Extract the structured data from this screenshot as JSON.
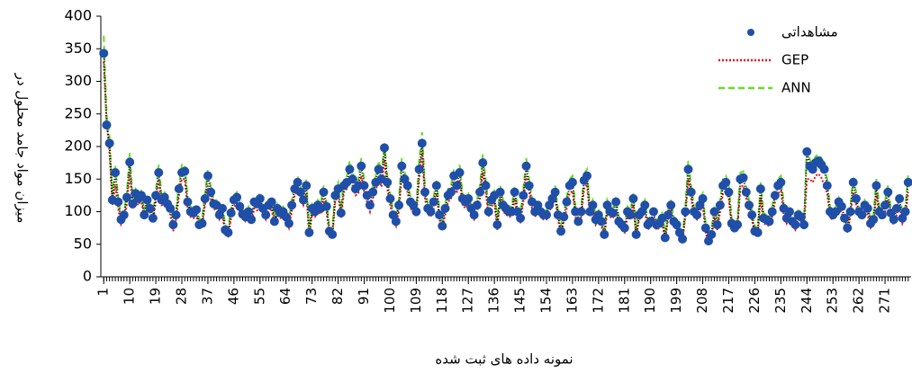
{
  "chart_data": {
    "type": "line",
    "y_label": "میزان مواد جامد محلول در",
    "x_label": "نمونه داده های ثبت شده",
    "xlim": [
      0,
      280
    ],
    "ylim": [
      0,
      400
    ],
    "yticks": [
      0,
      50,
      100,
      150,
      200,
      250,
      300,
      350,
      400
    ],
    "xticks": [
      1,
      10,
      19,
      28,
      37,
      46,
      55,
      64,
      73,
      82,
      91,
      100,
      109,
      118,
      127,
      136,
      145,
      154,
      163,
      172,
      181,
      190,
      199,
      208,
      217,
      226,
      235,
      244,
      253,
      262,
      271
    ],
    "legend": "upper right",
    "x": [
      1,
      2,
      3,
      4,
      5,
      6,
      7,
      8,
      9,
      10,
      11,
      12,
      13,
      14,
      15,
      16,
      17,
      18,
      19,
      20,
      21,
      22,
      23,
      24,
      25,
      26,
      27,
      28,
      29,
      30,
      31,
      32,
      33,
      34,
      35,
      36,
      37,
      38,
      39,
      40,
      41,
      42,
      43,
      44,
      45,
      46,
      47,
      48,
      49,
      50,
      51,
      52,
      53,
      54,
      55,
      56,
      57,
      58,
      59,
      60,
      61,
      62,
      63,
      64,
      65,
      66,
      67,
      68,
      69,
      70,
      71,
      72,
      73,
      74,
      75,
      76,
      77,
      78,
      79,
      80,
      81,
      82,
      83,
      84,
      85,
      86,
      87,
      88,
      89,
      90,
      91,
      92,
      93,
      94,
      95,
      96,
      97,
      98,
      99,
      100,
      101,
      102,
      103,
      104,
      105,
      106,
      107,
      108,
      109,
      110,
      111,
      112,
      113,
      114,
      115,
      116,
      117,
      118,
      119,
      120,
      121,
      122,
      123,
      124,
      125,
      126,
      127,
      128,
      129,
      130,
      131,
      132,
      133,
      134,
      135,
      136,
      137,
      138,
      139,
      140,
      141,
      142,
      143,
      144,
      145,
      146,
      147,
      148,
      149,
      150,
      151,
      152,
      153,
      154,
      155,
      156,
      157,
      158,
      159,
      160,
      161,
      162,
      163,
      164,
      165,
      166,
      167,
      168,
      169,
      170,
      171,
      172,
      173,
      174,
      175,
      176,
      177,
      178,
      179,
      180,
      181,
      182,
      183,
      184,
      185,
      186,
      187,
      188,
      189,
      190,
      191,
      192,
      193,
      194,
      195,
      196,
      197,
      198,
      199,
      200,
      201,
      202,
      203,
      204,
      205,
      206,
      207,
      208,
      209,
      210,
      211,
      212,
      213,
      214,
      215,
      216,
      217,
      218,
      219,
      220,
      221,
      222,
      223,
      224,
      225,
      226,
      227,
      228,
      229,
      230,
      231,
      232,
      233,
      234,
      235,
      236,
      237,
      238,
      239,
      240,
      241,
      242,
      243,
      244,
      245,
      246,
      247,
      248,
      249,
      250,
      251,
      252,
      253,
      254,
      255,
      256,
      257,
      258,
      259,
      260,
      261,
      262,
      263,
      264,
      265,
      266,
      267,
      268,
      269,
      270,
      271,
      272,
      273,
      274,
      275,
      276,
      277,
      278,
      279
    ],
    "series": [
      {
        "name": "مشاهداتی",
        "color": "#1f4fa8",
        "marker": "circle",
        "line_color": "#000000",
        "dash": "1,2",
        "values": [
          343,
          233,
          205,
          118,
          160,
          115,
          88,
          95,
          122,
          176,
          112,
          128,
          120,
          125,
          95,
          118,
          105,
          90,
          125,
          160,
          118,
          122,
          112,
          105,
          80,
          95,
          135,
          160,
          162,
          115,
          100,
          98,
          103,
          80,
          82,
          120,
          155,
          130,
          112,
          110,
          95,
          105,
          72,
          68,
          98,
          118,
          122,
          108,
          96,
          92,
          100,
          88,
          115,
          112,
          120,
          105,
          95,
          110,
          115,
          85,
          105,
          98,
          100,
          92,
          82,
          110,
          135,
          145,
          130,
          118,
          140,
          68,
          105,
          100,
          110,
          105,
          130,
          108,
          70,
          65,
          125,
          135,
          98,
          140,
          145,
          165,
          150,
          135,
          140,
          170,
          140,
          125,
          110,
          130,
          145,
          165,
          150,
          198,
          145,
          120,
          95,
          85,
          110,
          170,
          150,
          140,
          115,
          110,
          100,
          165,
          205,
          130,
          105,
          100,
          115,
          140,
          95,
          78,
          105,
          125,
          130,
          155,
          140,
          160,
          120,
          115,
          120,
          105,
          95,
          110,
          130,
          175,
          140,
          100,
          118,
          125,
          80,
          130,
          110,
          105,
          100,
          100,
          130,
          100,
          90,
          125,
          170,
          140,
          115,
          100,
          110,
          100,
          95,
          95,
          110,
          120,
          130,
          95,
          70,
          92,
          115,
          140,
          145,
          100,
          85,
          100,
          148,
          155,
          100,
          110,
          88,
          95,
          85,
          65,
          110,
          100,
          98,
          115,
          85,
          80,
          75,
          100,
          95,
          120,
          65,
          95,
          100,
          110,
          80,
          85,
          100,
          80,
          82,
          90,
          60,
          95,
          110,
          85,
          80,
          68,
          58,
          100,
          165,
          130,
          100,
          95,
          110,
          120,
          75,
          55,
          65,
          100,
          80,
          110,
          140,
          145,
          130,
          82,
          75,
          80,
          150,
          152,
          130,
          110,
          95,
          70,
          68,
          135,
          90,
          88,
          85,
          100,
          125,
          140,
          145,
          105,
          90,
          100,
          85,
          80,
          95,
          92,
          80,
          192,
          170,
          165,
          175,
          178,
          172,
          165,
          140,
          100,
          95,
          100,
          115,
          108,
          90,
          75,
          100,
          145,
          120,
          100,
          95,
          110,
          105,
          82,
          88,
          140,
          100,
          95,
          110,
          130,
          98,
          88,
          105,
          120,
          90,
          100,
          145
        ]
      },
      {
        "name": "GEP",
        "color": "#e8141a",
        "dash": "2,2",
        "values": [
          330,
          240,
          190,
          110,
          140,
          105,
          80,
          85,
          112,
          160,
          105,
          115,
          110,
          118,
          90,
          110,
          98,
          85,
          115,
          150,
          110,
          112,
          105,
          95,
          70,
          88,
          125,
          150,
          150,
          105,
          92,
          90,
          95,
          75,
          78,
          110,
          140,
          120,
          105,
          100,
          88,
          95,
          65,
          62,
          90,
          108,
          112,
          100,
          90,
          85,
          92,
          82,
          105,
          102,
          110,
          98,
          88,
          100,
          105,
          78,
          98,
          90,
          92,
          85,
          75,
          100,
          125,
          132,
          120,
          110,
          128,
          62,
          96,
          92,
          100,
          96,
          120,
          100,
          65,
          60,
          115,
          125,
          90,
          130,
          135,
          150,
          140,
          125,
          128,
          155,
          130,
          115,
          100,
          120,
          132,
          150,
          138,
          180,
          135,
          110,
          88,
          78,
          100,
          155,
          140,
          130,
          105,
          100,
          92,
          150,
          190,
          120,
          96,
          92,
          105,
          128,
          88,
          72,
          96,
          115,
          120,
          142,
          128,
          148,
          110,
          105,
          110,
          96,
          88,
          100,
          120,
          160,
          130,
          92,
          108,
          115,
          72,
          120,
          100,
          96,
          92,
          92,
          120,
          92,
          82,
          115,
          155,
          130,
          105,
          92,
          100,
          92,
          88,
          88,
          100,
          110,
          120,
          88,
          64,
          85,
          105,
          128,
          132,
          92,
          78,
          92,
          135,
          142,
          92,
          100,
          80,
          88,
          78,
          60,
          100,
          92,
          90,
          105,
          78,
          72,
          68,
          92,
          88,
          110,
          60,
          88,
          92,
          100,
          72,
          78,
          92,
          72,
          75,
          82,
          55,
          88,
          100,
          78,
          72,
          62,
          52,
          92,
          150,
          120,
          92,
          88,
          100,
          110,
          68,
          50,
          58,
          92,
          72,
          100,
          128,
          132,
          120,
          75,
          68,
          72,
          138,
          140,
          120,
          100,
          88,
          64,
          62,
          122,
          82,
          80,
          78,
          92,
          115,
          128,
          132,
          95,
          82,
          92,
          78,
          72,
          88,
          85,
          72,
          150,
          150,
          145,
          155,
          158,
          152,
          140,
          128,
          90,
          88,
          92,
          105,
          98,
          82,
          68,
          92,
          130,
          110,
          92,
          88,
          100,
          95,
          75,
          80,
          128,
          92,
          88,
          100,
          118,
          90,
          80,
          95,
          110,
          82,
          92,
          130
        ]
      },
      {
        "name": "ANN",
        "color": "#66dd22",
        "dash": "7,4",
        "values": [
          370,
          250,
          215,
          125,
          170,
          122,
          95,
          100,
          130,
          190,
          120,
          135,
          128,
          132,
          102,
          125,
          112,
          98,
          132,
          172,
          125,
          130,
          120,
          112,
          88,
          102,
          142,
          172,
          172,
          122,
          108,
          105,
          110,
          88,
          90,
          128,
          165,
          140,
          120,
          118,
          102,
          112,
          80,
          75,
          105,
          125,
          130,
          115,
          104,
          100,
          108,
          95,
          122,
          120,
          128,
          112,
          102,
          118,
          122,
          92,
          112,
          105,
          108,
          100,
          90,
          118,
          145,
          155,
          138,
          125,
          150,
          75,
          112,
          108,
          118,
          112,
          140,
          115,
          78,
          72,
          135,
          145,
          105,
          150,
          155,
          178,
          160,
          145,
          150,
          182,
          150,
          132,
          118,
          140,
          155,
          178,
          160,
          205,
          155,
          128,
          102,
          92,
          118,
          182,
          160,
          150,
          122,
          118,
          108,
          178,
          222,
          140,
          112,
          108,
          122,
          150,
          102,
          85,
          112,
          135,
          140,
          165,
          150,
          172,
          128,
          122,
          128,
          112,
          102,
          118,
          140,
          188,
          150,
          108,
          125,
          132,
          88,
          140,
          118,
          112,
          108,
          108,
          140,
          108,
          98,
          135,
          182,
          150,
          122,
          108,
          118,
          108,
          102,
          102,
          118,
          128,
          140,
          102,
          78,
          100,
          122,
          150,
          155,
          108,
          92,
          108,
          158,
          165,
          108,
          118,
          95,
          102,
          92,
          72,
          118,
          108,
          105,
          122,
          92,
          88,
          82,
          108,
          102,
          128,
          72,
          102,
          108,
          118,
          88,
          92,
          108,
          88,
          90,
          98,
          68,
          102,
          118,
          92,
          88,
          75,
          65,
          108,
          178,
          140,
          108,
          102,
          118,
          128,
          82,
          62,
          72,
          108,
          88,
          118,
          150,
          155,
          140,
          90,
          82,
          88,
          160,
          162,
          140,
          118,
          102,
          78,
          75,
          145,
          98,
          95,
          92,
          108,
          135,
          150,
          155,
          112,
          98,
          108,
          92,
          88,
          102,
          100,
          88,
          200,
          180,
          175,
          185,
          188,
          182,
          175,
          150,
          108,
          102,
          108,
          122,
          115,
          98,
          82,
          108,
          155,
          130,
          108,
          102,
          118,
          112,
          90,
          95,
          150,
          108,
          102,
          118,
          140,
          105,
          95,
          112,
          128,
          98,
          108,
          158
        ]
      }
    ]
  }
}
